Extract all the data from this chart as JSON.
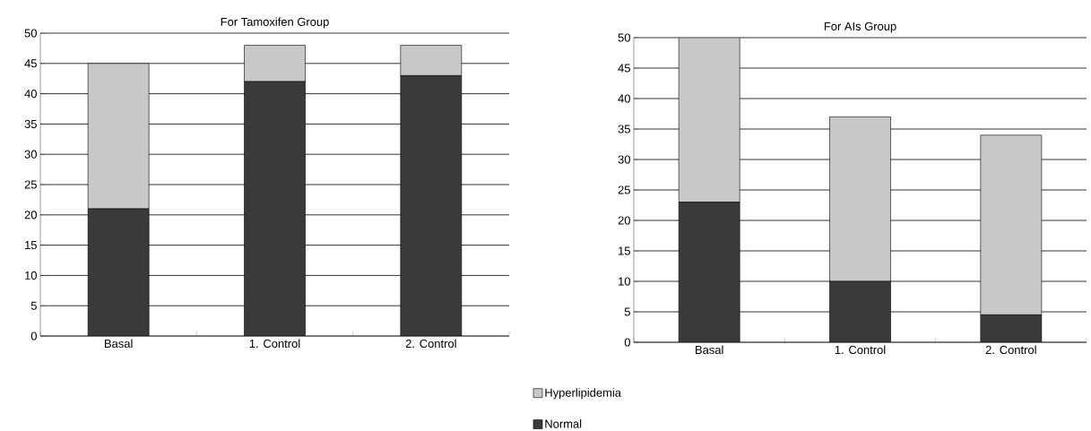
{
  "chart_data": [
    {
      "type": "bar",
      "title": "For Tamoxifen Group",
      "categories": [
        "Basal",
        "1. Control",
        "2. Control"
      ],
      "stacked": true,
      "ylim": [
        0,
        50
      ],
      "yticks": [
        0,
        5,
        10,
        15,
        20,
        25,
        30,
        35,
        40,
        45,
        50
      ],
      "grid": "y",
      "legend": "bottom right",
      "series": [
        {
          "name": "Normal",
          "color": "#3a3a3a",
          "values": [
            21,
            42,
            43
          ]
        },
        {
          "name": "Hyperlipidemia",
          "color": "#c8c8c8",
          "values": [
            24,
            6,
            5
          ]
        }
      ]
    },
    {
      "type": "bar",
      "title": "For AIs Group",
      "categories": [
        "Basal",
        "1. Control",
        "2. Control"
      ],
      "stacked": true,
      "ylim": [
        0,
        50
      ],
      "yticks": [
        0,
        5,
        10,
        15,
        20,
        25,
        30,
        35,
        40,
        45,
        50
      ],
      "grid": "y",
      "series": [
        {
          "color": "#3a3a3a",
          "values": [
            23,
            10,
            4.5
          ]
        },
        {
          "color": "#c8c8c8",
          "values": [
            27,
            27,
            29.5
          ]
        }
      ]
    }
  ]
}
